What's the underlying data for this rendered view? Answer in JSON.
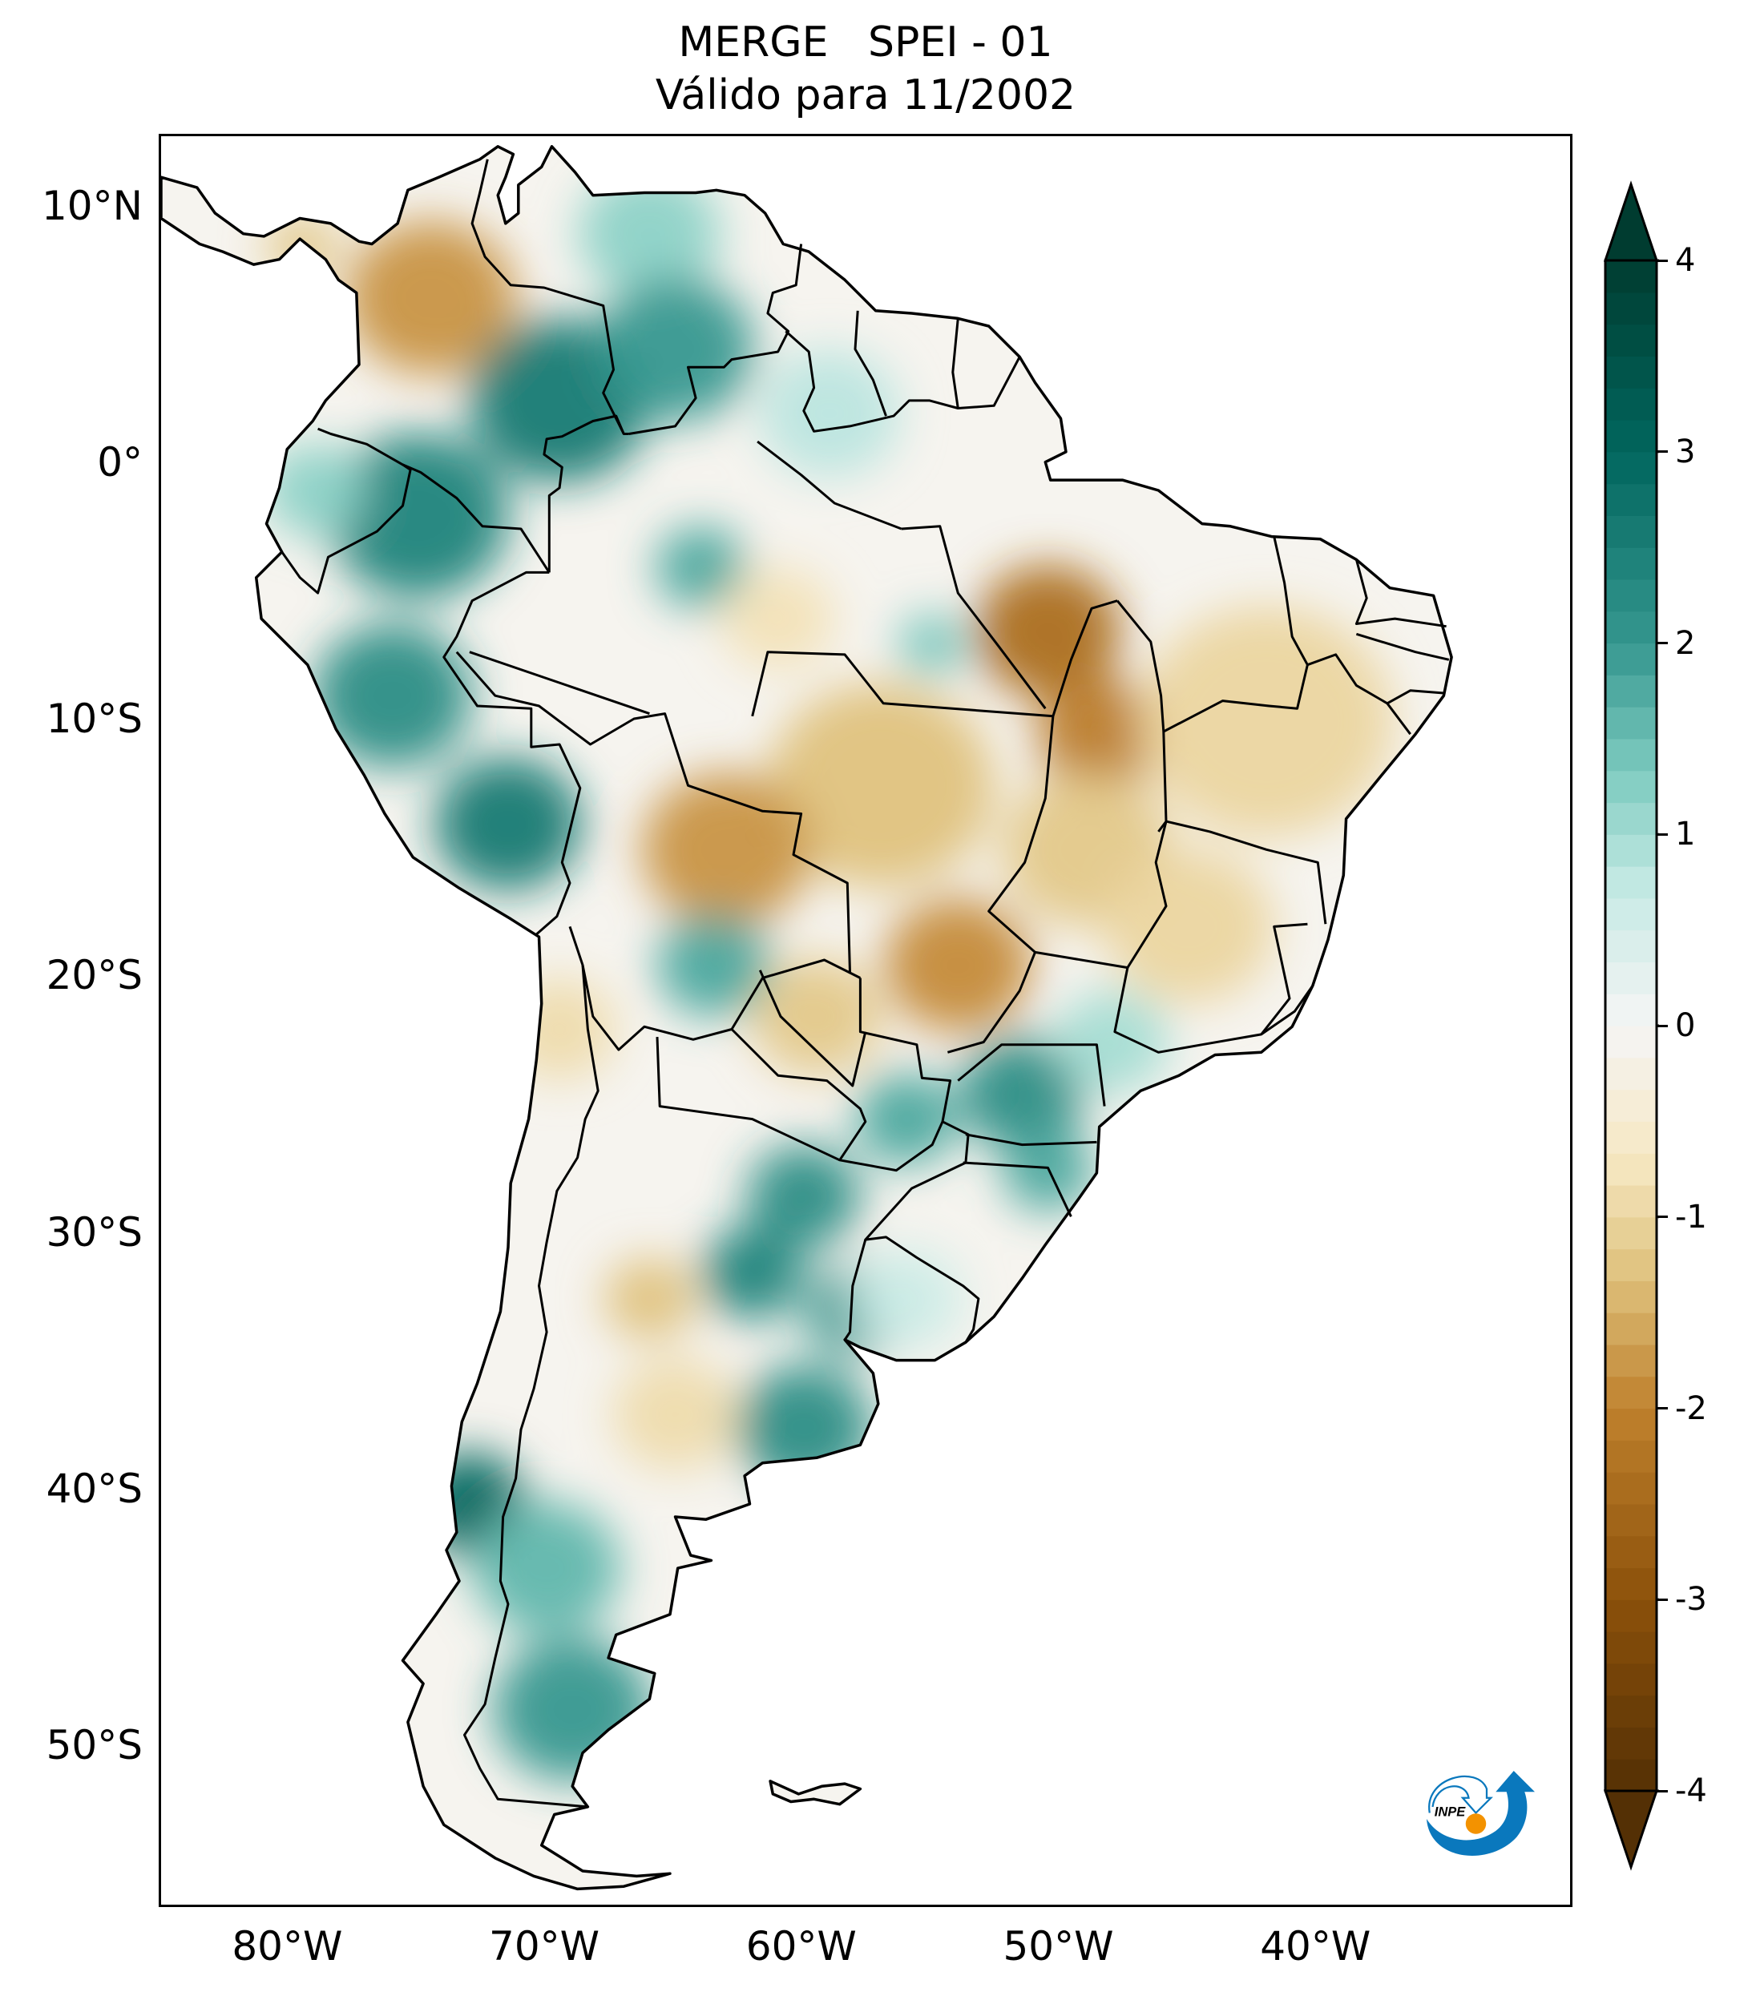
{
  "title": {
    "line1": "MERGE   SPEI - 01",
    "line2": "Válido para 11/2002"
  },
  "chart_data": {
    "type": "heatmap",
    "subtype": "geographic choropleth map",
    "title": "MERGE   SPEI - 01",
    "subtitle": "Válido para 11/2002",
    "variable": "SPEI - 01",
    "dataset": "MERGE",
    "period": "11/2002",
    "projection": "PlateCarree",
    "extent": {
      "lon": [
        -85,
        -30
      ],
      "lat": [
        -56.3,
        12.8
      ]
    },
    "x_ticks": [
      {
        "value": -80,
        "label": "80°W"
      },
      {
        "value": -70,
        "label": "70°W"
      },
      {
        "value": -60,
        "label": "60°W"
      },
      {
        "value": -50,
        "label": "50°W"
      },
      {
        "value": -40,
        "label": "40°W"
      }
    ],
    "y_ticks": [
      {
        "value": 10,
        "label": "10°N"
      },
      {
        "value": 0,
        "label": "0°"
      },
      {
        "value": -10,
        "label": "10°S"
      },
      {
        "value": -20,
        "label": "20°S"
      },
      {
        "value": -30,
        "label": "30°S"
      },
      {
        "value": -40,
        "label": "40°S"
      },
      {
        "value": -50,
        "label": "50°S"
      }
    ],
    "colorbar": {
      "colormap": "BrBG",
      "range": [
        -4,
        4
      ],
      "extend": "both",
      "orientation": "vertical",
      "placement": "right",
      "ticks": [
        {
          "value": 4,
          "label": "4"
        },
        {
          "value": 3,
          "label": "3"
        },
        {
          "value": 2,
          "label": "2"
        },
        {
          "value": 1,
          "label": "1"
        },
        {
          "value": 0,
          "label": "0"
        },
        {
          "value": -1,
          "label": "-1"
        },
        {
          "value": -2,
          "label": "-2"
        },
        {
          "value": -3,
          "label": "-3"
        },
        {
          "value": -4,
          "label": "-4"
        }
      ],
      "stops": [
        {
          "value": -4,
          "color": "#543005"
        },
        {
          "value": -3,
          "color": "#8c510a"
        },
        {
          "value": -2,
          "color": "#bf812d"
        },
        {
          "value": -1.3,
          "color": "#dfc27d"
        },
        {
          "value": -0.7,
          "color": "#f6e8c3"
        },
        {
          "value": 0,
          "color": "#f5f5f5"
        },
        {
          "value": 0.7,
          "color": "#c7eae5"
        },
        {
          "value": 1.3,
          "color": "#80cdc1"
        },
        {
          "value": 2,
          "color": "#35978f"
        },
        {
          "value": 3,
          "color": "#01665e"
        },
        {
          "value": 4,
          "color": "#003c30"
        }
      ]
    },
    "anomalies": [
      {
        "region": "northern Colombia",
        "lon": -74.5,
        "lat": 6.5,
        "spei": -1.8,
        "radius_deg": 3.0
      },
      {
        "region": "Panama isthmus",
        "lon": -79.5,
        "lat": 8.5,
        "spei": -1.2,
        "radius_deg": 1.3
      },
      {
        "region": "Venezuela llanos",
        "lon": -66,
        "lat": 9,
        "spei": 1.2,
        "radius_deg": 2.5
      },
      {
        "region": "southeast Colombia",
        "lon": -69.5,
        "lat": 2.5,
        "spei": 2.6,
        "radius_deg": 3.2
      },
      {
        "region": "southern Venezuela",
        "lon": -65,
        "lat": 4.5,
        "spei": 2.0,
        "radius_deg": 2.8
      },
      {
        "region": "eastern Ecuador / northern Peru",
        "lon": -75,
        "lat": -2,
        "spei": 2.4,
        "radius_deg": 3.2
      },
      {
        "region": "Ecuador coast",
        "lon": -79,
        "lat": -1,
        "spei": 1.2,
        "radius_deg": 1.8
      },
      {
        "region": "central Peru",
        "lon": -76,
        "lat": -9,
        "spei": 2.2,
        "radius_deg": 2.8
      },
      {
        "region": "southern Peru",
        "lon": -71.5,
        "lat": -14,
        "spei": 2.6,
        "radius_deg": 2.6
      },
      {
        "region": "western Amazon",
        "lon": -64,
        "lat": -4,
        "spei": 1.8,
        "radius_deg": 1.6
      },
      {
        "region": "Roraima / Guyana",
        "lon": -59,
        "lat": 2,
        "spei": 0.8,
        "radius_deg": 2.5
      },
      {
        "region": "central Amazon",
        "lon": -61,
        "lat": -6,
        "spei": -0.8,
        "radius_deg": 2.0
      },
      {
        "region": "Pará",
        "lon": -50.5,
        "lat": -6.5,
        "spei": -2.4,
        "radius_deg": 2.6
      },
      {
        "region": "Pará west",
        "lon": -55,
        "lat": -7,
        "spei": 1.4,
        "radius_deg": 1.2
      },
      {
        "region": "Tocantins",
        "lon": -48.5,
        "lat": -10.5,
        "spei": -2.1,
        "radius_deg": 2.2
      },
      {
        "region": "Piauí / Bahia",
        "lon": -42,
        "lat": -10,
        "spei": -1.0,
        "radius_deg": 4.5
      },
      {
        "region": "Mato Grosso",
        "lon": -57,
        "lat": -12.5,
        "spei": -1.3,
        "radius_deg": 4.0
      },
      {
        "region": "Rondônia / Bolivia",
        "lon": -63,
        "lat": -15,
        "spei": -1.8,
        "radius_deg": 3.0
      },
      {
        "region": "Mato Grosso do Sul",
        "lon": -54,
        "lat": -19.5,
        "spei": -1.9,
        "radius_deg": 2.6
      },
      {
        "region": "Goiás",
        "lon": -49,
        "lat": -15,
        "spei": -1.2,
        "radius_deg": 3.0
      },
      {
        "region": "Minas Gerais",
        "lon": -45,
        "lat": -18,
        "spei": -1.0,
        "radius_deg": 3.0
      },
      {
        "region": "Paraguay north",
        "lon": -59.5,
        "lat": -21.5,
        "spei": -1.2,
        "radius_deg": 2.3
      },
      {
        "region": "eastern Bolivia",
        "lon": -63.5,
        "lat": -19.5,
        "spei": 1.8,
        "radius_deg": 2.0
      },
      {
        "region": "Paraná",
        "lon": -51.5,
        "lat": -24.5,
        "spei": 2.2,
        "radius_deg": 2.2
      },
      {
        "region": "São Paulo",
        "lon": -48,
        "lat": -22.5,
        "spei": 1.0,
        "radius_deg": 2.0
      },
      {
        "region": "Santa Catarina",
        "lon": -50.5,
        "lat": -27.5,
        "spei": 1.8,
        "radius_deg": 1.6
      },
      {
        "region": "Paraguay east",
        "lon": -56,
        "lat": -25.5,
        "spei": 1.8,
        "radius_deg": 1.8
      },
      {
        "region": "north Argentina",
        "lon": -60,
        "lat": -28.5,
        "spei": 2.2,
        "radius_deg": 2.0
      },
      {
        "region": "central Argentina",
        "lon": -62,
        "lat": -31.5,
        "spei": 2.4,
        "radius_deg": 1.8
      },
      {
        "region": "Santa Fe",
        "lon": -58,
        "lat": -33,
        "spei": 2.0,
        "radius_deg": 1.8
      },
      {
        "region": "Cuyo",
        "lon": -66,
        "lat": -32.5,
        "spei": -1.3,
        "radius_deg": 1.6
      },
      {
        "region": "La Pampa",
        "lon": -65,
        "lat": -37,
        "spei": -0.9,
        "radius_deg": 2.2
      },
      {
        "region": "Buenos Aires",
        "lon": -60,
        "lat": -37.5,
        "spei": 2.2,
        "radius_deg": 2.4
      },
      {
        "region": "Uruguay",
        "lon": -56,
        "lat": -32.5,
        "spei": 0.6,
        "radius_deg": 2.0
      },
      {
        "region": "southern Chile",
        "lon": -73,
        "lat": -40.5,
        "spei": 3.0,
        "radius_deg": 2.0
      },
      {
        "region": "Patagonia north",
        "lon": -70,
        "lat": -43,
        "spei": 1.6,
        "radius_deg": 2.6
      },
      {
        "region": "Patagonia south",
        "lon": -69,
        "lat": -48.5,
        "spei": 2.0,
        "radius_deg": 2.8
      },
      {
        "region": "Atacama / Altiplano",
        "lon": -69.5,
        "lat": -22,
        "spei": -0.9,
        "radius_deg": 2.0
      }
    ]
  },
  "logo": {
    "text": "INPE",
    "colors": {
      "arrow": "#0a78bd",
      "sun": "#f39200",
      "text": "#000000"
    }
  }
}
